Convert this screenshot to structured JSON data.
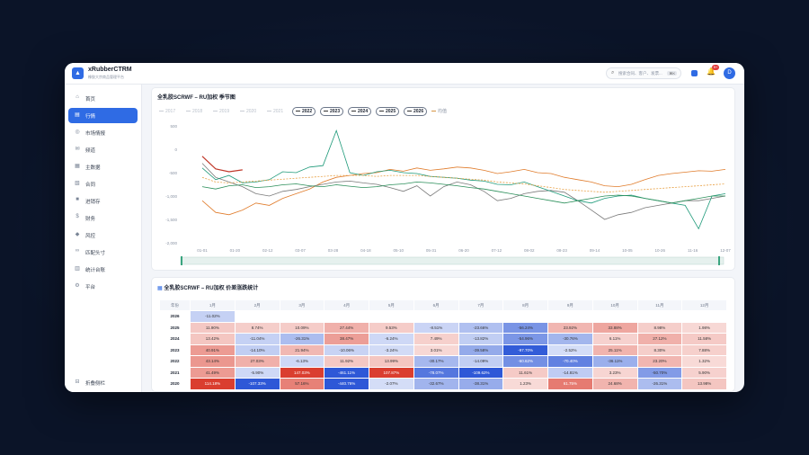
{
  "app": {
    "title": "xRubberCTRM",
    "subtitle": "橡胶大宗商品管理平台",
    "logo_glyph": "▲"
  },
  "topbar": {
    "search_placeholder": "搜索合同、客户、发票...",
    "search_kbd": "⌘K",
    "notif_count": "9+",
    "avatar_initial": "D"
  },
  "sidebar": {
    "items": [
      {
        "label": "首页",
        "icon": "home-icon",
        "glyph": "⌂"
      },
      {
        "label": "行情",
        "icon": "chart-icon",
        "glyph": "▤",
        "active": true
      },
      {
        "label": "市场情报",
        "icon": "globe-icon",
        "glyph": "◎"
      },
      {
        "label": "频道",
        "icon": "chat-icon",
        "glyph": "✉"
      },
      {
        "label": "主数据",
        "icon": "database-icon",
        "glyph": "▦"
      },
      {
        "label": "合同",
        "icon": "document-icon",
        "glyph": "▧"
      },
      {
        "label": "进销存",
        "icon": "box-icon",
        "glyph": "■"
      },
      {
        "label": "财务",
        "icon": "money-icon",
        "glyph": "$"
      },
      {
        "label": "风控",
        "icon": "shield-icon",
        "glyph": "◆"
      },
      {
        "label": "匹配头寸",
        "icon": "link-icon",
        "glyph": "∞"
      },
      {
        "label": "统计台账",
        "icon": "stats-icon",
        "glyph": "▥"
      },
      {
        "label": "平台",
        "icon": "platform-icon",
        "glyph": "⚙"
      }
    ],
    "collapse_label": "折叠侧栏",
    "collapse_glyph": "⊟"
  },
  "chart_card": {
    "title": "全乳胶SCRWF – RU加权 季节图",
    "legend": [
      {
        "label": "2017",
        "on": false
      },
      {
        "label": "2018",
        "on": false
      },
      {
        "label": "2019",
        "on": false
      },
      {
        "label": "2020",
        "on": false
      },
      {
        "label": "2021",
        "on": false
      },
      {
        "label": "2022",
        "on": true
      },
      {
        "label": "2023",
        "on": true
      },
      {
        "label": "2024",
        "on": true
      },
      {
        "label": "2025",
        "on": true
      },
      {
        "label": "2026",
        "on": true
      },
      {
        "label": "均值",
        "on": false,
        "dashed": true
      }
    ]
  },
  "chart_data": {
    "type": "line",
    "title": "全乳胶SCRWF – RU加权 季节图",
    "ylim": [
      -2000,
      500
    ],
    "yticks": [
      "500",
      "0",
      "-500",
      "-1,000",
      "-1,500",
      "-2,000"
    ],
    "ytick_values": [
      500,
      0,
      -500,
      -1000,
      -1500,
      -2000
    ],
    "xticks": [
      "01-01",
      "01-20",
      "02-12",
      "03-07",
      "03-28",
      "04-18",
      "05-10",
      "05-31",
      "06-20",
      "07-12",
      "08-02",
      "08-23",
      "09-14",
      "10-05",
      "10-26",
      "11-16",
      "12-07"
    ],
    "grid": false,
    "series": [
      {
        "name": "2022",
        "color": "#e07b2a",
        "style": "solid",
        "values": [
          -1100,
          -1350,
          -1400,
          -1300,
          -1150,
          -1200,
          -1050,
          -950,
          -850,
          -700,
          -600,
          -560,
          -520,
          -500,
          -430,
          -470,
          -400,
          -450,
          -420,
          -380,
          -400,
          -450,
          -520,
          -480,
          -430,
          -500,
          -520,
          -600,
          -650,
          -700,
          -780,
          -800,
          -750,
          -650,
          -560,
          -520,
          -490,
          -460,
          -470,
          -430
        ]
      },
      {
        "name": "2023",
        "color": "#7a7a7a",
        "style": "solid",
        "values": [
          -300,
          -600,
          -700,
          -800,
          -950,
          -1000,
          -900,
          -860,
          -800,
          -750,
          -700,
          -680,
          -720,
          -750,
          -820,
          -900,
          -780,
          -1000,
          -800,
          -700,
          -760,
          -900,
          -1100,
          -1050,
          -950,
          -900,
          -880,
          -920,
          -1100,
          -1300,
          -1500,
          -1400,
          -1350,
          -1250,
          -1200,
          -1150,
          -1100,
          -1100,
          -1050,
          -1000
        ]
      },
      {
        "name": "2024",
        "color": "#1f9a7a",
        "style": "solid",
        "values": [
          -400,
          -650,
          -560,
          -720,
          -700,
          -650,
          -480,
          -500,
          -380,
          -350,
          400,
          -500,
          -560,
          -480,
          -450,
          -500,
          -520,
          -580,
          -600,
          -620,
          -660,
          -680,
          -750,
          -760,
          -700,
          -800,
          -900,
          -1000,
          -1100,
          -1150,
          -1050,
          -1000,
          -980,
          -1050,
          -1100,
          -1150,
          -1200,
          -1700,
          -1000,
          -950
        ]
      },
      {
        "name": "2025",
        "color": "#2b8f5a",
        "style": "solid",
        "values": [
          -800,
          -850,
          -780,
          -760,
          -820,
          -800,
          -760,
          -740,
          -780,
          -800,
          -760,
          -790,
          -820,
          -800,
          -760,
          -740,
          -700,
          -720,
          -750,
          -780,
          -820,
          -850,
          -900,
          -950,
          -1000,
          -1050,
          -1100,
          -1150,
          -1100,
          -1050,
          -1000,
          -980,
          -1000,
          -1050,
          -1100,
          -1150,
          -1100,
          -1050,
          -1000,
          -1000
        ]
      },
      {
        "name": "2026",
        "color": "#c0392b",
        "style": "solid",
        "values": [
          -150,
          -420,
          -480,
          -440
        ]
      },
      {
        "name": "均值",
        "color": "#e8a145",
        "style": "dashed",
        "values": [
          -600,
          -700,
          -720,
          -700,
          -680,
          -660,
          -640,
          -620,
          -600,
          -580,
          -560,
          -560,
          -560,
          -580,
          -560,
          -560,
          -560,
          -580,
          -600,
          -620,
          -640,
          -660,
          -700,
          -720,
          -740,
          -780,
          -820,
          -860,
          -880,
          -900,
          -920,
          -900,
          -880,
          -860,
          -840,
          -820,
          -800,
          -780,
          -760,
          -740
        ]
      }
    ]
  },
  "heatmap_card": {
    "title": "全乳胶SCRWF – RU加权 价差涨跌统计",
    "title_icon": "▦",
    "year_header": "年份",
    "months": [
      "1月",
      "2月",
      "3月",
      "4月",
      "5月",
      "6月",
      "7月",
      "8月",
      "9月",
      "10月",
      "11月",
      "12月"
    ],
    "rows": [
      {
        "year": "2026",
        "cells": [
          "-11.02%",
          "",
          "",
          "",
          "",
          "",
          "",
          "",
          "",
          "",
          "",
          ""
        ]
      },
      {
        "year": "2025",
        "cells": [
          "11.90%",
          "8.74%",
          "10.09%",
          "27.44%",
          "9.53%",
          "-8.51%",
          "-23.66%",
          "-56.24%",
          "23.92%",
          "33.88%",
          "8.98%",
          "1.98%"
        ]
      },
      {
        "year": "2024",
        "cells": [
          "13.42%",
          "-11.04%",
          "-26.31%",
          "38.47%",
          "-6.24%",
          "7.49%",
          "-13.82%",
          "-54.96%",
          "-30.76%",
          "6.11%",
          "27.12%",
          "11.58%"
        ]
      },
      {
        "year": "2023",
        "cells": [
          "40.91%",
          "-14.10%",
          "21.94%",
          "-10.06%",
          "-3.24%",
          "3.01%",
          "-39.58%",
          "-97.70%",
          "-2.52%",
          "25.11%",
          "8.30%",
          "7.88%"
        ]
      },
      {
        "year": "2022",
        "cells": [
          "43.14%",
          "27.03%",
          "-6.13%",
          "11.92%",
          "13.99%",
          "-30.17%",
          "-14.09%",
          "-60.62%",
          "-70.40%",
          "-36.11%",
          "23.20%",
          "1.32%"
        ]
      },
      {
        "year": "2021",
        "cells": [
          "41.49%",
          "-5.90%",
          "147.03%",
          "-461.11%",
          "107.87%",
          "-78.07%",
          "-109.62%",
          "11.61%",
          "-14.81%",
          "3.23%",
          "-50.70%",
          "5.90%"
        ]
      },
      {
        "year": "2020",
        "cells": [
          "114.18%",
          "-107.33%",
          "57.16%",
          "-440.76%",
          "-2.07%",
          "-32.67%",
          "-38.31%",
          "1.23%",
          "61.75%",
          "24.68%",
          "-26.31%",
          "13.98%"
        ]
      }
    ]
  },
  "colors": {
    "accent": "#2f6be4",
    "pos_strong": "#d93a2b",
    "neg_strong": "#2a55d6"
  }
}
